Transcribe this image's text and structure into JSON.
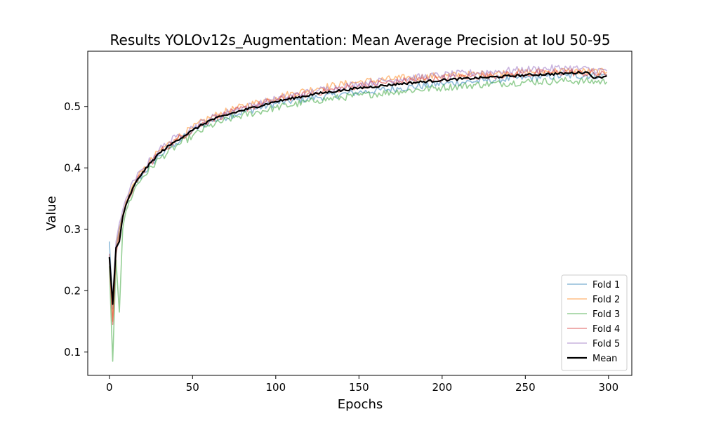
{
  "chart_data": {
    "type": "line",
    "title": "Results YOLOv12s_Augmentation: Mean Average Precision at IoU 50-95",
    "xlabel": "Epochs",
    "ylabel": "Value",
    "xlim": [
      -13,
      314
    ],
    "ylim": [
      0.062,
      0.59
    ],
    "xticks": [
      0,
      50,
      100,
      150,
      200,
      250,
      300
    ],
    "yticks": [
      0.1,
      0.2,
      0.3,
      0.4,
      0.5
    ],
    "ytick_labels": [
      "0.1",
      "0.2",
      "0.3",
      "0.4",
      "0.5"
    ],
    "grid": false,
    "legend_position": "lower-right",
    "epochs": {
      "start": 0,
      "end": 299
    },
    "series": [
      {
        "name": "Fold 1",
        "color": "#1f77b4",
        "opacity": 0.5,
        "points": [
          [
            0,
            0.28
          ],
          [
            2,
            0.17
          ],
          [
            4,
            0.27
          ],
          [
            6,
            0.3
          ],
          [
            10,
            0.34
          ],
          [
            15,
            0.37
          ],
          [
            20,
            0.39
          ],
          [
            30,
            0.42
          ],
          [
            40,
            0.44
          ],
          [
            50,
            0.46
          ],
          [
            60,
            0.475
          ],
          [
            75,
            0.487
          ],
          [
            100,
            0.505
          ],
          [
            125,
            0.515
          ],
          [
            150,
            0.523
          ],
          [
            175,
            0.53
          ],
          [
            200,
            0.537
          ],
          [
            225,
            0.542
          ],
          [
            250,
            0.547
          ],
          [
            275,
            0.55
          ],
          [
            299,
            0.551
          ]
        ]
      },
      {
        "name": "Fold 2",
        "color": "#ff7f0e",
        "opacity": 0.5,
        "points": [
          [
            0,
            0.26
          ],
          [
            2,
            0.15
          ],
          [
            4,
            0.27
          ],
          [
            6,
            0.3
          ],
          [
            10,
            0.345
          ],
          [
            15,
            0.375
          ],
          [
            20,
            0.395
          ],
          [
            30,
            0.428
          ],
          [
            40,
            0.448
          ],
          [
            50,
            0.465
          ],
          [
            60,
            0.482
          ],
          [
            75,
            0.496
          ],
          [
            100,
            0.515
          ],
          [
            125,
            0.53
          ],
          [
            150,
            0.54
          ],
          [
            175,
            0.546
          ],
          [
            200,
            0.55
          ],
          [
            225,
            0.553
          ],
          [
            250,
            0.556
          ],
          [
            275,
            0.558
          ],
          [
            299,
            0.556
          ]
        ]
      },
      {
        "name": "Fold 3",
        "color": "#2ca02c",
        "opacity": 0.5,
        "points": [
          [
            0,
            0.24
          ],
          [
            2,
            0.085
          ],
          [
            4,
            0.25
          ],
          [
            6,
            0.165
          ],
          [
            8,
            0.3
          ],
          [
            10,
            0.33
          ],
          [
            15,
            0.365
          ],
          [
            20,
            0.385
          ],
          [
            30,
            0.415
          ],
          [
            40,
            0.435
          ],
          [
            50,
            0.452
          ],
          [
            60,
            0.468
          ],
          [
            75,
            0.482
          ],
          [
            100,
            0.498
          ],
          [
            125,
            0.51
          ],
          [
            150,
            0.518
          ],
          [
            175,
            0.525
          ],
          [
            200,
            0.531
          ],
          [
            225,
            0.536
          ],
          [
            250,
            0.54
          ],
          [
            275,
            0.542
          ],
          [
            299,
            0.54
          ]
        ]
      },
      {
        "name": "Fold 4",
        "color": "#d62728",
        "opacity": 0.5,
        "points": [
          [
            0,
            0.25
          ],
          [
            2,
            0.145
          ],
          [
            4,
            0.26
          ],
          [
            6,
            0.29
          ],
          [
            10,
            0.34
          ],
          [
            15,
            0.372
          ],
          [
            20,
            0.392
          ],
          [
            30,
            0.425
          ],
          [
            40,
            0.445
          ],
          [
            50,
            0.462
          ],
          [
            60,
            0.478
          ],
          [
            75,
            0.492
          ],
          [
            100,
            0.51
          ],
          [
            125,
            0.523
          ],
          [
            150,
            0.534
          ],
          [
            175,
            0.541
          ],
          [
            200,
            0.546
          ],
          [
            225,
            0.55
          ],
          [
            250,
            0.553
          ],
          [
            275,
            0.556
          ],
          [
            299,
            0.552
          ]
        ]
      },
      {
        "name": "Fold 5",
        "color": "#9467bd",
        "opacity": 0.5,
        "points": [
          [
            0,
            0.26
          ],
          [
            2,
            0.19
          ],
          [
            4,
            0.28
          ],
          [
            6,
            0.31
          ],
          [
            10,
            0.35
          ],
          [
            15,
            0.38
          ],
          [
            20,
            0.398
          ],
          [
            30,
            0.43
          ],
          [
            40,
            0.45
          ],
          [
            50,
            0.466
          ],
          [
            60,
            0.48
          ],
          [
            75,
            0.494
          ],
          [
            100,
            0.512
          ],
          [
            125,
            0.526
          ],
          [
            150,
            0.537
          ],
          [
            175,
            0.545
          ],
          [
            200,
            0.551
          ],
          [
            225,
            0.556
          ],
          [
            250,
            0.56
          ],
          [
            275,
            0.563
          ],
          [
            299,
            0.558
          ]
        ]
      },
      {
        "name": "Mean",
        "color": "#000000",
        "opacity": 1,
        "points": [
          [
            0,
            0.255
          ],
          [
            2,
            0.178
          ],
          [
            4,
            0.27
          ],
          [
            6,
            0.28
          ],
          [
            8,
            0.32
          ],
          [
            10,
            0.34
          ],
          [
            15,
            0.372
          ],
          [
            20,
            0.393
          ],
          [
            30,
            0.424
          ],
          [
            40,
            0.444
          ],
          [
            50,
            0.461
          ],
          [
            60,
            0.477
          ],
          [
            75,
            0.49
          ],
          [
            100,
            0.508
          ],
          [
            125,
            0.521
          ],
          [
            150,
            0.53
          ],
          [
            175,
            0.537
          ],
          [
            200,
            0.543
          ],
          [
            225,
            0.547
          ],
          [
            250,
            0.551
          ],
          [
            275,
            0.554
          ],
          [
            287,
            0.556
          ],
          [
            292,
            0.546
          ],
          [
            299,
            0.55
          ]
        ]
      }
    ]
  }
}
